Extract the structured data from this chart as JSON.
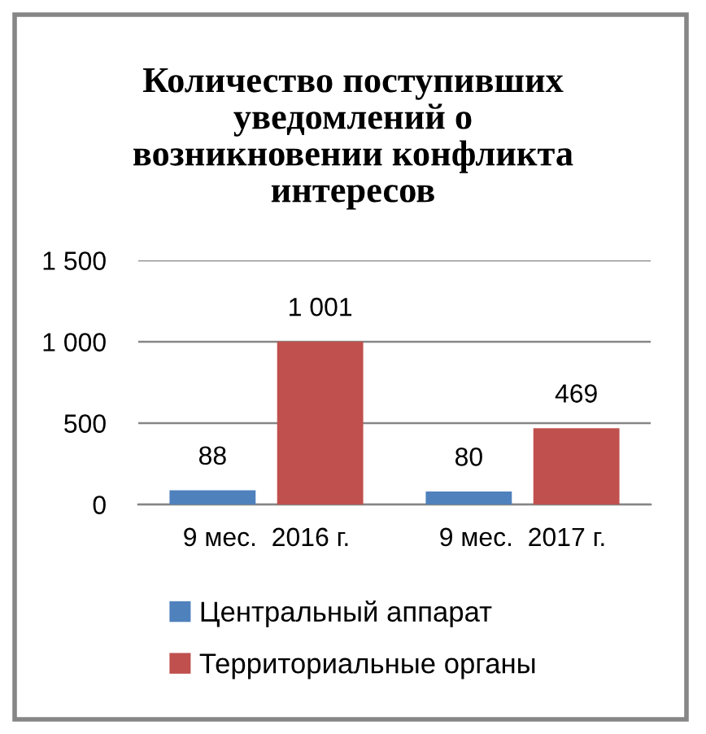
{
  "chart_data": {
    "type": "bar",
    "title": "Количество поступивших\nуведомлений о\nвозникновении конфликта\nинтересов",
    "categories": [
      "9 мес.  2016 г.",
      "9 мес.  2017 г."
    ],
    "series": [
      {
        "name": "Центральный аппарат",
        "color": "#4f81bd",
        "values": [
          88,
          80
        ],
        "value_labels": [
          "88",
          "80"
        ]
      },
      {
        "name": "Территориальные органы",
        "color": "#c0504d",
        "values": [
          1001,
          469
        ],
        "value_labels": [
          "1 001",
          "469"
        ]
      }
    ],
    "ylim": [
      0,
      1500
    ],
    "yticks": [
      0,
      500,
      {
        "value": 1000,
        "label": "1 000"
      },
      {
        "value": 1500,
        "label": "1 500"
      }
    ],
    "grid": "y",
    "legend": "bottom"
  }
}
